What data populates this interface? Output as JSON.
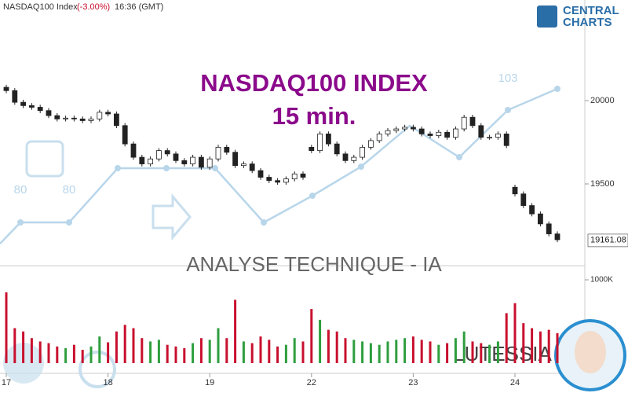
{
  "header": {
    "symbol": "NASDAQ100 Index",
    "change": "(-3.00%)",
    "time": "16:36 (GMT)",
    "logo_top": "CENTRAL",
    "logo_bottom": "CHARTS"
  },
  "overlays": {
    "title": "NASDAQ100 INDEX",
    "timeframe": "15 min.",
    "banner": "ANALYSE TECHNIQUE - IA",
    "brand": "LUTESSIA",
    "watermark_labels": [
      "80",
      "80",
      "103"
    ]
  },
  "chart_data": {
    "type": "candlestick",
    "categories": [
      "17",
      null,
      null,
      null,
      null,
      null,
      null,
      null,
      null,
      null,
      null,
      null,
      "18",
      null,
      null,
      null,
      null,
      null,
      null,
      null,
      null,
      null,
      null,
      null,
      "19",
      null,
      null,
      null,
      null,
      null,
      null,
      null,
      null,
      null,
      null,
      null,
      "22",
      null,
      null,
      null,
      null,
      null,
      null,
      null,
      null,
      null,
      null,
      null,
      "23",
      null,
      null,
      null,
      null,
      null,
      null,
      null,
      null,
      null,
      null,
      null,
      "24",
      null,
      null,
      null,
      null,
      null
    ],
    "open": [
      20080,
      20060,
      19990,
      19970,
      19960,
      19940,
      19910,
      19890,
      19895,
      19890,
      19880,
      19890,
      19930,
      19920,
      19850,
      19740,
      19660,
      19620,
      19650,
      19700,
      19680,
      19640,
      19620,
      19660,
      19600,
      19650,
      19720,
      19690,
      19610,
      19620,
      19580,
      19540,
      19520,
      19510,
      19530,
      19560,
      19720,
      19700,
      19800,
      19740,
      19680,
      19640,
      19660,
      19720,
      19760,
      19800,
      19820,
      19830,
      19840,
      19830,
      19800,
      19790,
      19810,
      19780,
      19830,
      19900,
      19850,
      19780,
      19780,
      19800,
      19480,
      19440,
      19370,
      19320,
      19260,
      19200
    ],
    "high": [
      20095,
      20075,
      20005,
      19985,
      19975,
      19955,
      19925,
      19910,
      19910,
      19905,
      19905,
      19945,
      19945,
      19935,
      19865,
      19755,
      19675,
      19665,
      19715,
      19715,
      19695,
      19655,
      19675,
      19675,
      19665,
      19735,
      19735,
      19705,
      19635,
      19635,
      19595,
      19555,
      19535,
      19545,
      19575,
      19575,
      19735,
      19815,
      19815,
      19755,
      19695,
      19675,
      19735,
      19775,
      19815,
      19835,
      19845,
      19855,
      19855,
      19845,
      19815,
      19825,
      19825,
      19845,
      19915,
      19915,
      19865,
      19795,
      19815,
      19815,
      19495,
      19455,
      19385,
      19335,
      19275,
      19215
    ],
    "low": [
      20045,
      19975,
      19955,
      19945,
      19925,
      19895,
      19875,
      19875,
      19875,
      19865,
      19865,
      19875,
      19905,
      19835,
      19725,
      19645,
      19605,
      19605,
      19635,
      19665,
      19625,
      19605,
      19605,
      19585,
      19585,
      19635,
      19675,
      19595,
      19595,
      19565,
      19525,
      19505,
      19495,
      19495,
      19515,
      19525,
      19685,
      19685,
      19725,
      19665,
      19625,
      19625,
      19645,
      19705,
      19745,
      19785,
      19805,
      19815,
      19815,
      19785,
      19775,
      19775,
      19765,
      19765,
      19815,
      19835,
      19765,
      19765,
      19765,
      19715,
      19425,
      19355,
      19305,
      19245,
      19185,
      19150
    ],
    "close": [
      20060,
      19990,
      19970,
      19960,
      19940,
      19910,
      19890,
      19895,
      19890,
      19880,
      19890,
      19930,
      19920,
      19850,
      19740,
      19660,
      19620,
      19650,
      19700,
      19680,
      19640,
      19620,
      19660,
      19600,
      19650,
      19720,
      19690,
      19610,
      19620,
      19580,
      19540,
      19520,
      19510,
      19530,
      19560,
      19540,
      19700,
      19800,
      19740,
      19680,
      19640,
      19660,
      19720,
      19760,
      19800,
      19820,
      19830,
      19840,
      19830,
      19800,
      19790,
      19810,
      19780,
      19830,
      19900,
      19850,
      19780,
      19780,
      19800,
      19730,
      19440,
      19370,
      19320,
      19260,
      19200,
      19165
    ],
    "volumes": [
      850000,
      420000,
      380000,
      300000,
      260000,
      240000,
      200000,
      180000,
      220000,
      160000,
      200000,
      320000,
      250000,
      380000,
      460000,
      420000,
      300000,
      260000,
      280000,
      220000,
      200000,
      180000,
      240000,
      300000,
      280000,
      420000,
      300000,
      760000,
      260000,
      240000,
      320000,
      280000,
      200000,
      220000,
      300000,
      260000,
      650000,
      520000,
      400000,
      380000,
      300000,
      280000,
      260000,
      240000,
      220000,
      260000,
      280000,
      300000,
      320000,
      280000,
      260000,
      220000,
      240000,
      300000,
      380000,
      260000,
      240000,
      220000,
      260000,
      600000,
      720000,
      480000,
      420000,
      380000,
      400000,
      360000
    ],
    "ylim": [
      19047,
      20604
    ],
    "yticks": [
      19500,
      20000
    ],
    "volume_ylim": [
      0,
      1104000
    ],
    "volume_yticks": [
      {
        "value": 1000000,
        "label": "1000K"
      }
    ],
    "last_price": 19161.08,
    "up_color": "#ffffff",
    "down_color": "#222222",
    "volume_up_color": "#2e9e3e",
    "volume_down_color": "#c8102e"
  }
}
